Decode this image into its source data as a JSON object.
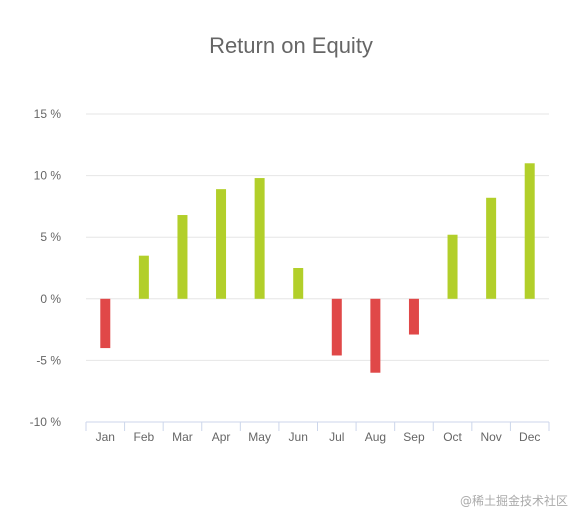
{
  "chart_data": {
    "type": "bar",
    "title": "Return on Equity",
    "categories": [
      "Jan",
      "Feb",
      "Mar",
      "Apr",
      "May",
      "Jun",
      "Jul",
      "Aug",
      "Sep",
      "Oct",
      "Nov",
      "Dec"
    ],
    "values": [
      -4,
      3.5,
      6.8,
      8.9,
      9.8,
      2.5,
      -4.6,
      -6,
      -2.9,
      5.2,
      8.2,
      11
    ],
    "ylim": [
      -10,
      15
    ],
    "yticks": [
      -10,
      -5,
      0,
      5,
      10,
      15
    ],
    "ytick_suffix": " %",
    "xlabel": "",
    "ylabel": "",
    "grid": true,
    "colors": {
      "positive": "#b2cf2a",
      "negative": "#e04848",
      "grid": "#e6e6e6",
      "axis": "#ccd6eb",
      "tick_text": "#666666"
    }
  },
  "watermark": "@稀土掘金技术社区"
}
